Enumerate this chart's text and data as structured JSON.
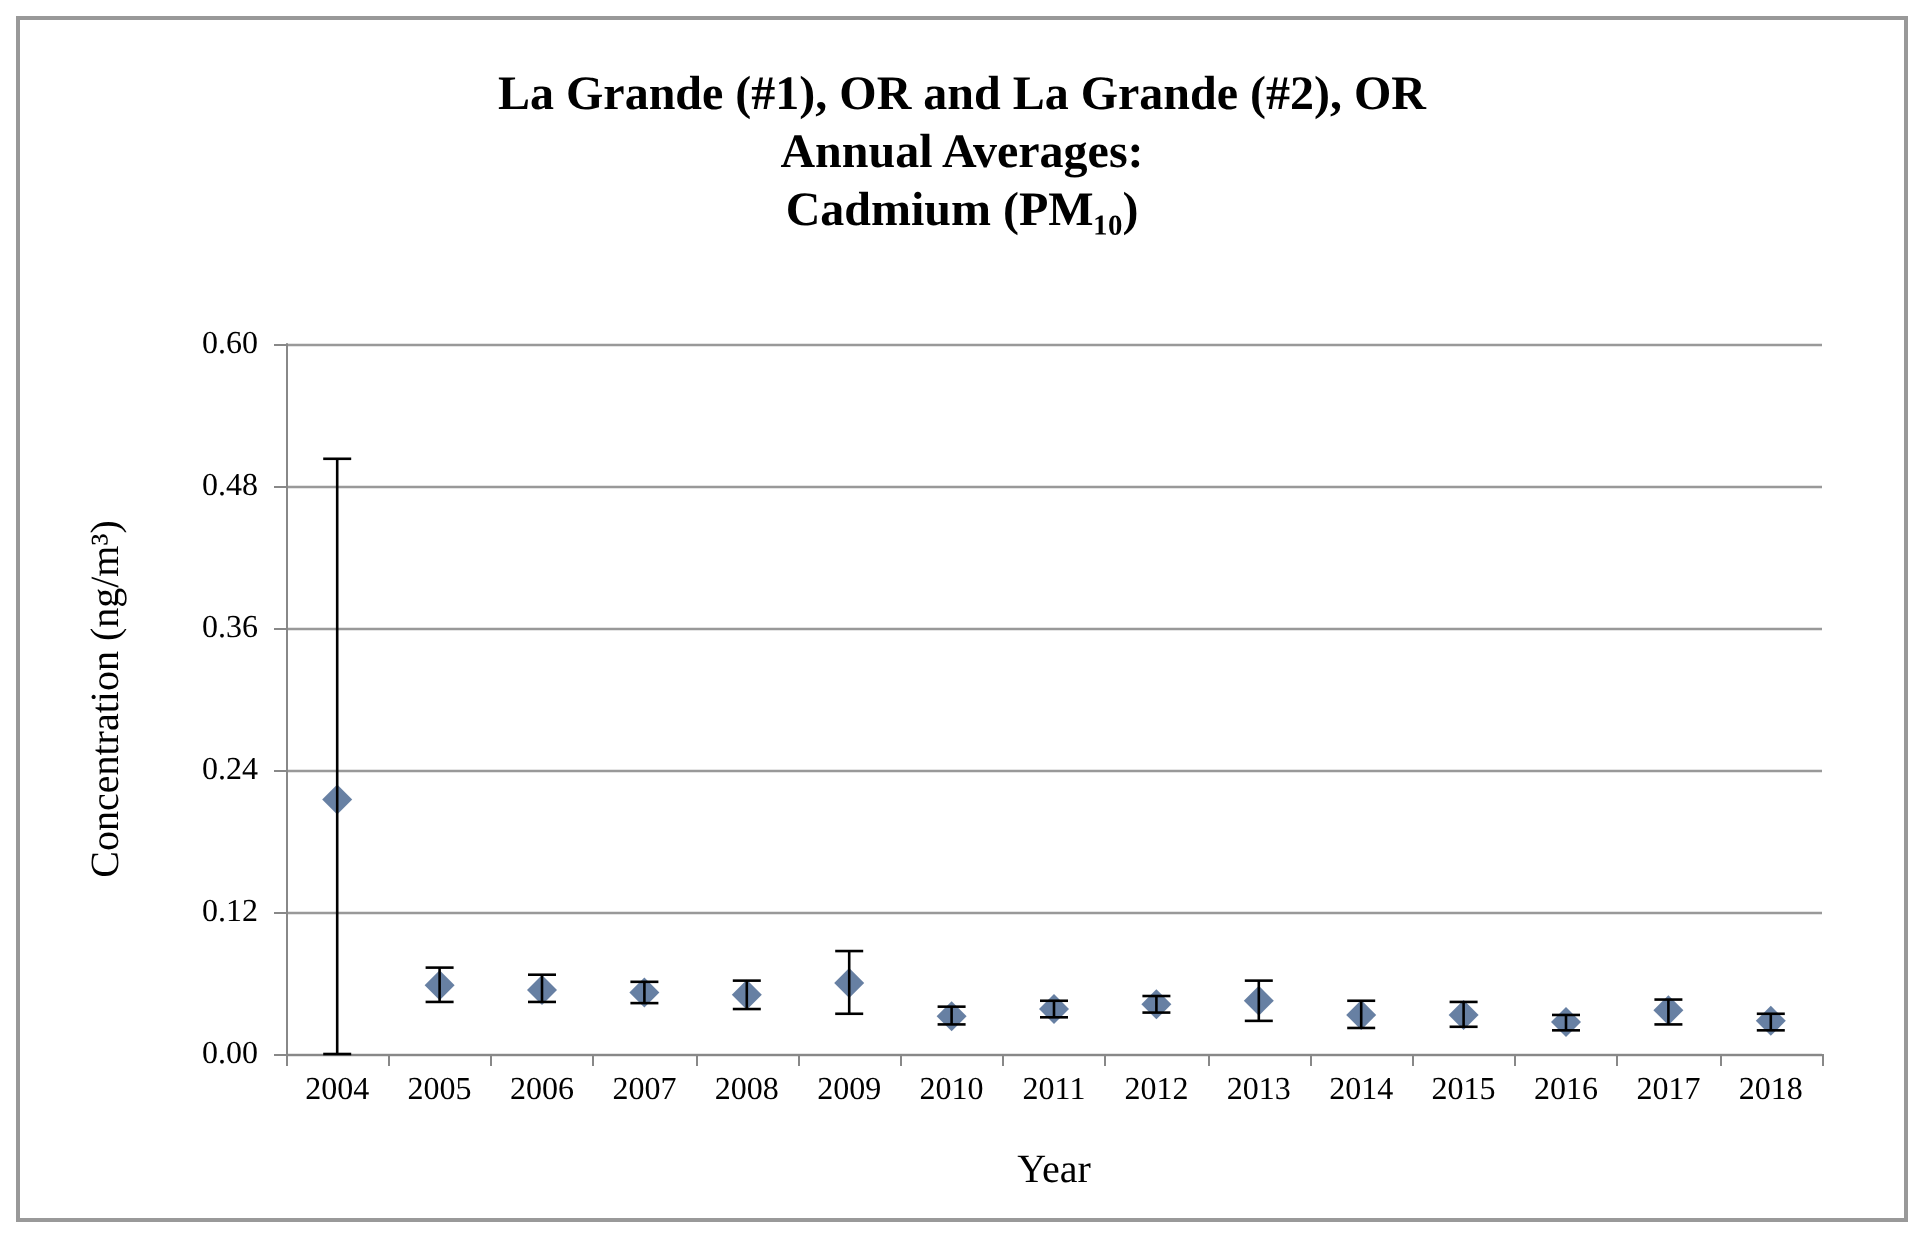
{
  "chart_data": {
    "type": "scatter",
    "title": "La Grande (#1), OR and La Grande (#2), OR\nAnnual Averages:\nCadmium (PM₁₀)",
    "xlabel": "Year",
    "ylabel": "Concentration (ng/m³)",
    "categories": [
      "2004",
      "2005",
      "2006",
      "2007",
      "2008",
      "2009",
      "2010",
      "2011",
      "2012",
      "2013",
      "2014",
      "2015",
      "2016",
      "2017",
      "2018"
    ],
    "series": [
      {
        "color": "#41608c",
        "values": [
          0.215,
          0.058,
          0.054,
          0.052,
          0.05,
          0.06,
          0.032,
          0.038,
          0.042,
          0.045,
          0.033,
          0.033,
          0.027,
          0.037,
          0.028
        ],
        "errors": [
          [
            0,
            0.503
          ],
          [
            0.044,
            0.073
          ],
          [
            0.044,
            0.067
          ],
          [
            0.043,
            0.061
          ],
          [
            0.038,
            0.062
          ],
          [
            0.034,
            0.087
          ],
          [
            0.025,
            0.04
          ],
          [
            0.031,
            0.045
          ],
          [
            0.035,
            0.049
          ],
          [
            0.028,
            0.062
          ],
          [
            0.022,
            0.045
          ],
          [
            0.023,
            0.044
          ],
          [
            0.02,
            0.033
          ],
          [
            0.025,
            0.046
          ],
          [
            0.02,
            0.034
          ]
        ]
      }
    ],
    "ylim": [
      0,
      0.6
    ],
    "yticks": [
      {
        "value": 0,
        "label": "0.00"
      },
      {
        "value": 0.12,
        "label": "0.12"
      },
      {
        "value": 0.24,
        "label": "0.24"
      },
      {
        "value": 0.36,
        "label": "0.36"
      },
      {
        "value": 0.48,
        "label": "0.48"
      },
      {
        "value": 0.6,
        "label": "0.60"
      }
    ],
    "grid": "y",
    "marker": "diamond"
  }
}
